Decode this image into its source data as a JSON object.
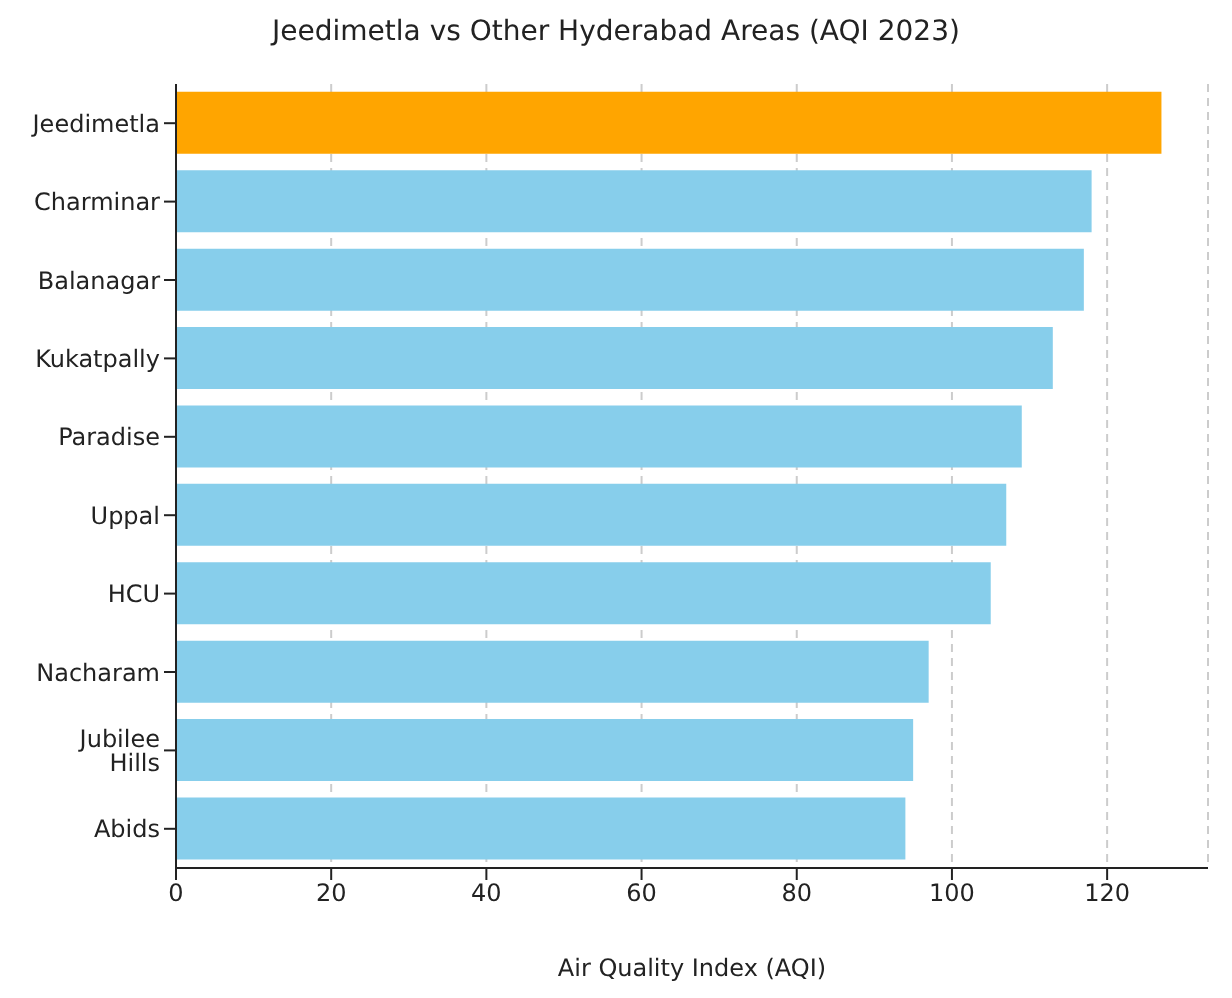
{
  "chart_data": {
    "type": "bar",
    "orientation": "horizontal",
    "title": "Jeedimetla vs Other Hyderabad Areas (AQI 2023)",
    "xlabel": "Air Quality Index (AQI)",
    "categories": [
      "Jeedimetla",
      "Charminar",
      "Balanagar",
      "Kukatpally",
      "Paradise",
      "Uppal",
      "HCU",
      "Nacharam",
      "Jubilee Hills",
      "Abids"
    ],
    "values": [
      127,
      118,
      117,
      113,
      109,
      107,
      105,
      97,
      95,
      94
    ],
    "colors": [
      "#ffa500",
      "#87ceeb",
      "#87ceeb",
      "#87ceeb",
      "#87ceeb",
      "#87ceeb",
      "#87ceeb",
      "#87ceeb",
      "#87ceeb",
      "#87ceeb"
    ],
    "xlim": [
      0,
      133
    ],
    "xticks": [
      0,
      20,
      40,
      60,
      80,
      100,
      120
    ],
    "grid": "x",
    "legend": false
  }
}
